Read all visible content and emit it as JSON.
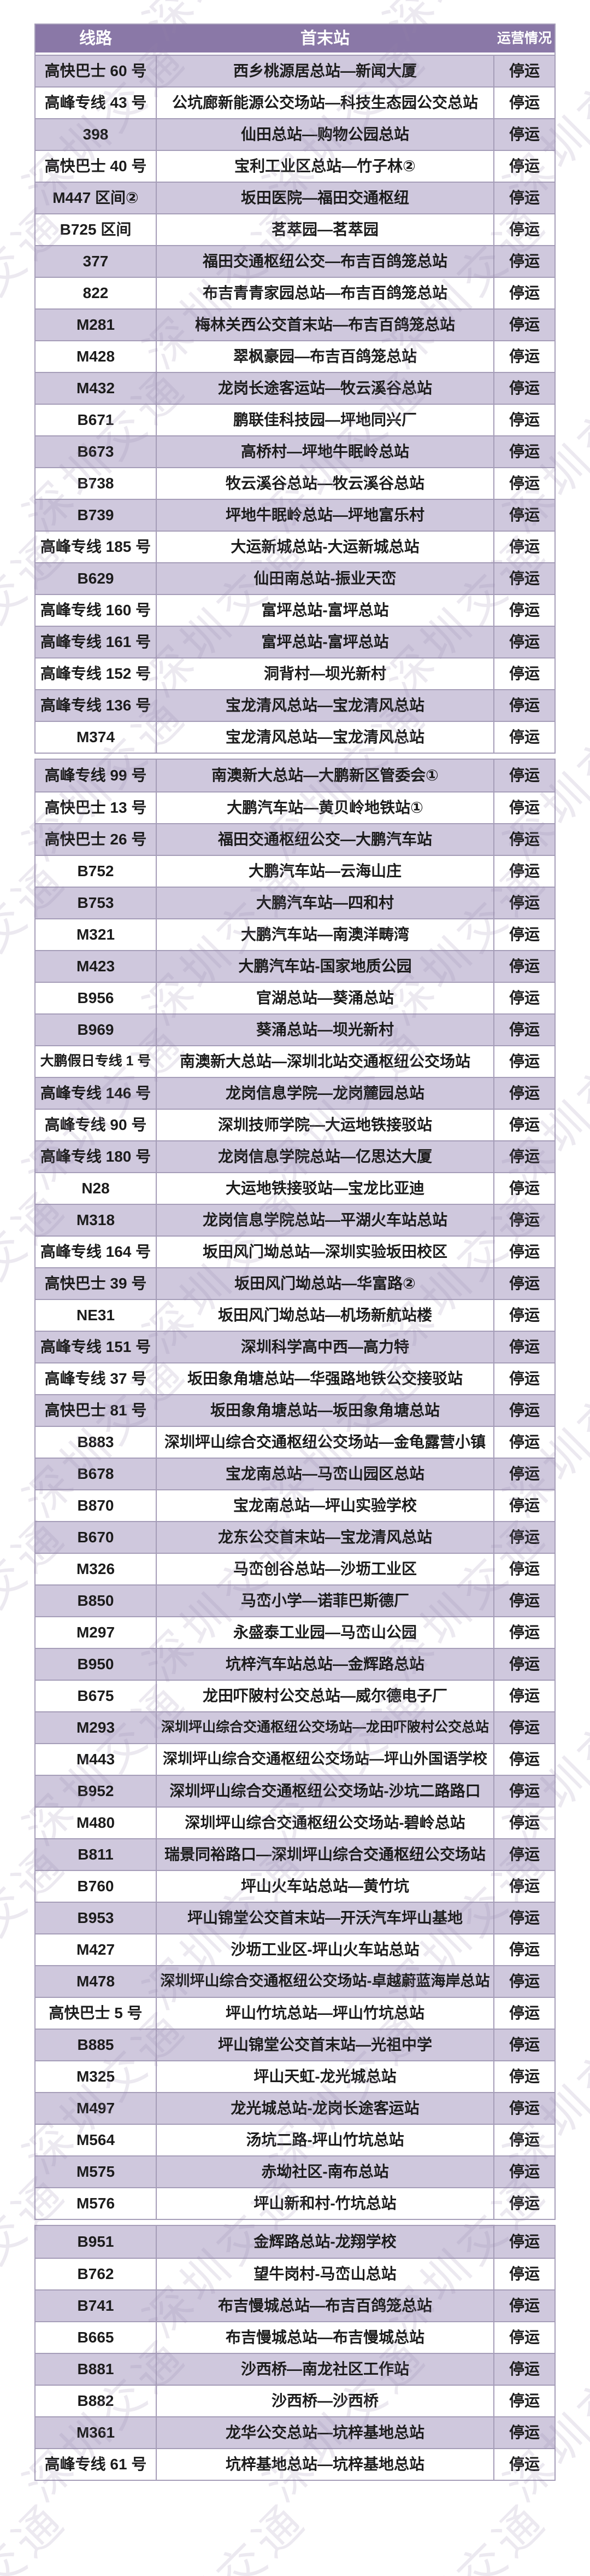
{
  "watermark": {
    "text": "深圳交通"
  },
  "colors": {
    "header_bg": "#8a78a7",
    "header_text": "#ffffff",
    "row_alt_bg": "#cfc8dd",
    "row_bg": "#ffffff",
    "border": "#a59db8",
    "text": "#1c1c1c",
    "watermark": "rgba(147,132,170,0.18)"
  },
  "table": {
    "columns": [
      {
        "key": "route",
        "label": "线路"
      },
      {
        "key": "stations",
        "label": "首末站"
      },
      {
        "key": "status",
        "label": "运营情况"
      }
    ],
    "sections": [
      {
        "rows": [
          {
            "route": "高快巴士 60 号",
            "stations": "西乡桃源居总站—新闻大厦",
            "status": "停运"
          },
          {
            "route": "高峰专线 43 号",
            "stations": "公坑廊新能源公交场站—科技生态园公交总站",
            "status": "停运"
          },
          {
            "route": "398",
            "stations": "仙田总站—购物公园总站",
            "status": "停运"
          },
          {
            "route": "高快巴士 40 号",
            "stations": "宝利工业区总站—竹子林②",
            "status": "停运"
          },
          {
            "route": "M447 区间②",
            "stations": "坂田医院—福田交通枢纽",
            "status": "停运"
          },
          {
            "route": "B725 区间",
            "stations": "茗萃园—茗萃园",
            "status": "停运"
          },
          {
            "route": "377",
            "stations": "福田交通枢纽公交—布吉百鸽笼总站",
            "status": "停运"
          },
          {
            "route": "822",
            "stations": "布吉青青家园总站—布吉百鸽笼总站",
            "status": "停运"
          },
          {
            "route": "M281",
            "stations": "梅林关西公交首末站—布吉百鸽笼总站",
            "status": "停运"
          },
          {
            "route": "M428",
            "stations": "翠枫豪园—布吉百鸽笼总站",
            "status": "停运"
          },
          {
            "route": "M432",
            "stations": "龙岗长途客运站—牧云溪谷总站",
            "status": "停运"
          },
          {
            "route": "B671",
            "stations": "鹏联佳科技园—坪地同兴厂",
            "status": "停运"
          },
          {
            "route": "B673",
            "stations": "高桥村—坪地牛眠岭总站",
            "status": "停运"
          },
          {
            "route": "B738",
            "stations": "牧云溪谷总站—牧云溪谷总站",
            "status": "停运"
          },
          {
            "route": "B739",
            "stations": "坪地牛眠岭总站—坪地富乐村",
            "status": "停运"
          },
          {
            "route": "高峰专线 185 号",
            "stations": "大运新城总站-大运新城总站",
            "status": "停运"
          },
          {
            "route": "B629",
            "stations": "仙田南总站-振业天峦",
            "status": "停运"
          },
          {
            "route": "高峰专线 160 号",
            "stations": "富坪总站-富坪总站",
            "status": "停运"
          },
          {
            "route": "高峰专线 161 号",
            "stations": "富坪总站-富坪总站",
            "status": "停运"
          },
          {
            "route": "高峰专线 152 号",
            "stations": "洞背村—坝光新村",
            "status": "停运"
          },
          {
            "route": "高峰专线 136 号",
            "stations": "宝龙清风总站—宝龙清风总站",
            "status": "停运"
          },
          {
            "route": "M374",
            "stations": "宝龙清风总站—宝龙清风总站",
            "status": "停运"
          }
        ]
      },
      {
        "rows": [
          {
            "route": "高峰专线 99 号",
            "stations": "南澳新大总站—大鹏新区管委会①",
            "status": "停运"
          },
          {
            "route": "高快巴士 13 号",
            "stations": "大鹏汽车站—黄贝岭地铁站①",
            "status": "停运"
          },
          {
            "route": "高快巴士 26 号",
            "stations": "福田交通枢纽公交—大鹏汽车站",
            "status": "停运"
          },
          {
            "route": "B752",
            "stations": "大鹏汽车站—云海山庄",
            "status": "停运"
          },
          {
            "route": "B753",
            "stations": "大鹏汽车站—四和村",
            "status": "停运"
          },
          {
            "route": "M321",
            "stations": "大鹏汽车站—南澳洋畴湾",
            "status": "停运"
          },
          {
            "route": "M423",
            "stations": "大鹏汽车站-国家地质公园",
            "status": "停运"
          },
          {
            "route": "B956",
            "stations": "官湖总站—葵涌总站",
            "status": "停运"
          },
          {
            "route": "B969",
            "stations": "葵涌总站—坝光新村",
            "status": "停运"
          },
          {
            "route": "大鹏假日专线 1 号",
            "stations": "南澳新大总站—深圳北站交通枢纽公交场站",
            "status": "停运"
          },
          {
            "route": "高峰专线 146 号",
            "stations": "龙岗信息学院—龙岗麓园总站",
            "status": "停运"
          },
          {
            "route": "高峰专线 90 号",
            "stations": "深圳技师学院—大运地铁接驳站",
            "status": "停运"
          },
          {
            "route": "高峰专线 180 号",
            "stations": "龙岗信息学院总站—亿思达大厦",
            "status": "停运"
          },
          {
            "route": "N28",
            "stations": "大运地铁接驳站—宝龙比亚迪",
            "status": "停运"
          },
          {
            "route": "M318",
            "stations": "龙岗信息学院总站—平湖火车站总站",
            "status": "停运"
          },
          {
            "route": "高峰专线 164 号",
            "stations": "坂田风门坳总站—深圳实验坂田校区",
            "status": "停运"
          },
          {
            "route": "高快巴士 39 号",
            "stations": "坂田风门坳总站—华富路②",
            "status": "停运"
          },
          {
            "route": "NE31",
            "stations": "坂田风门坳总站—机场新航站楼",
            "status": "停运"
          },
          {
            "route": "高峰专线 151 号",
            "stations": "深圳科学高中西—高力特",
            "status": "停运"
          },
          {
            "route": "高峰专线 37 号",
            "stations": "坂田象角塘总站—华强路地铁公交接驳站",
            "status": "停运"
          },
          {
            "route": "高快巴士 81 号",
            "stations": "坂田象角塘总站—坂田象角塘总站",
            "status": "停运"
          },
          {
            "route": "B883",
            "stations": "深圳坪山综合交通枢纽公交场站—金龟露营小镇",
            "status": "停运"
          },
          {
            "route": "B678",
            "stations": "宝龙南总站—马峦山园区总站",
            "status": "停运"
          },
          {
            "route": "B870",
            "stations": "宝龙南总站—坪山实验学校",
            "status": "停运"
          },
          {
            "route": "B670",
            "stations": "龙东公交首末站—宝龙清风总站",
            "status": "停运"
          },
          {
            "route": "M326",
            "stations": "马峦创谷总站—沙坜工业区",
            "status": "停运"
          },
          {
            "route": "B850",
            "stations": "马峦小学—诺菲巴斯德厂",
            "status": "停运"
          },
          {
            "route": "M297",
            "stations": "永盛泰工业园—马峦山公园",
            "status": "停运"
          },
          {
            "route": "B950",
            "stations": "坑梓汽车站总站—金辉路总站",
            "status": "停运"
          },
          {
            "route": "B675",
            "stations": "龙田吓陂村公交总站—威尔德电子厂",
            "status": "停运"
          },
          {
            "route": "M293",
            "stations": "深圳坪山综合交通枢纽公交场站—龙田吓陂村公交总站",
            "status": "停运"
          },
          {
            "route": "M443",
            "stations": "深圳坪山综合交通枢纽公交场站—坪山外国语学校",
            "status": "停运"
          },
          {
            "route": "B952",
            "stations": "深圳坪山综合交通枢纽公交场站-沙坑二路路口",
            "status": "停运"
          },
          {
            "route": "M480",
            "stations": "深圳坪山综合交通枢纽公交场站-碧岭总站",
            "status": "停运"
          },
          {
            "route": "B811",
            "stations": "瑞景同裕路口—深圳坪山综合交通枢纽公交场站",
            "status": "停运"
          },
          {
            "route": "B760",
            "stations": "坪山火车站总站—黄竹坑",
            "status": "停运"
          },
          {
            "route": "B953",
            "stations": "坪山锦堂公交首末站—开沃汽车坪山基地",
            "status": "停运"
          },
          {
            "route": "M427",
            "stations": "沙坜工业区-坪山火车站总站",
            "status": "停运"
          },
          {
            "route": "M478",
            "stations": "深圳坪山综合交通枢纽公交场站-卓越蔚蓝海岸总站",
            "status": "停运"
          },
          {
            "route": "高快巴士 5 号",
            "stations": "坪山竹坑总站—坪山竹坑总站",
            "status": "停运"
          },
          {
            "route": "B885",
            "stations": "坪山锦堂公交首末站—光祖中学",
            "status": "停运"
          },
          {
            "route": "M325",
            "stations": "坪山天虹-龙光城总站",
            "status": "停运"
          },
          {
            "route": "M497",
            "stations": "龙光城总站-龙岗长途客运站",
            "status": "停运"
          },
          {
            "route": "M564",
            "stations": "汤坑二路-坪山竹坑总站",
            "status": "停运"
          },
          {
            "route": "M575",
            "stations": "赤坳社区-南布总站",
            "status": "停运"
          },
          {
            "route": "M576",
            "stations": "坪山新和村-竹坑总站",
            "status": "停运"
          }
        ]
      },
      {
        "rows": [
          {
            "route": "B951",
            "stations": "金辉路总站-龙翔学校",
            "status": "停运"
          },
          {
            "route": "B762",
            "stations": "望牛岗村-马峦山总站",
            "status": "停运"
          },
          {
            "route": "B741",
            "stations": "布吉慢城总站—布吉百鸽笼总站",
            "status": "停运"
          },
          {
            "route": "B665",
            "stations": "布吉慢城总站—布吉慢城总站",
            "status": "停运"
          },
          {
            "route": "B881",
            "stations": "沙西桥—南龙社区工作站",
            "status": "停运"
          },
          {
            "route": "B882",
            "stations": "沙西桥—沙西桥",
            "status": "停运"
          },
          {
            "route": "M361",
            "stations": "龙华公交总站—坑梓基地总站",
            "status": "停运"
          },
          {
            "route": "高峰专线 61 号",
            "stations": "坑梓基地总站—坑梓基地总站",
            "status": "停运"
          }
        ]
      }
    ]
  }
}
